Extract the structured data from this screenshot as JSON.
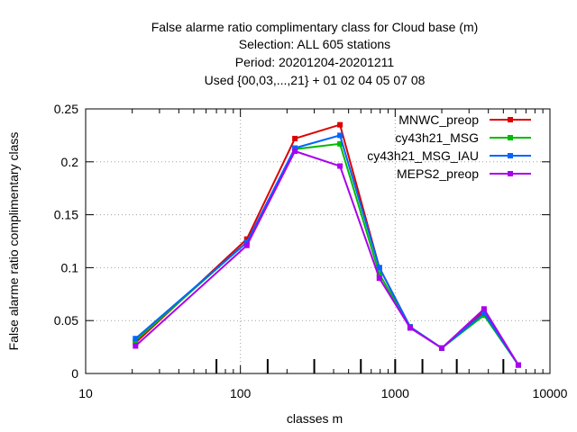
{
  "chart_data": {
    "type": "line",
    "title_lines": [
      "False alarme ratio complimentary class  for Cloud base (m)",
      "Selection: ALL    605 stations",
      "Period: 20201204-20201211",
      "Used {00,03,...,21} + 01 02 04 05 07 08"
    ],
    "xlabel": "classes m",
    "ylabel": "False alarme ratio complimentary class",
    "x_scale": "log",
    "xlim": [
      10,
      10000
    ],
    "ylim": [
      0,
      0.25
    ],
    "x_ticks": [
      10,
      100,
      1000,
      10000
    ],
    "x_tick_labels": [
      "10",
      "100",
      "1000",
      "10000"
    ],
    "y_ticks": [
      0,
      0.05,
      0.1,
      0.15,
      0.2,
      0.25
    ],
    "y_tick_labels": [
      "0",
      "0.05",
      "0.1",
      "0.15",
      "0.2",
      "0.25"
    ],
    "grid": true,
    "legend_position": "top-right",
    "class_boundaries": [
      70,
      150,
      300,
      600,
      1000,
      1500,
      2500,
      5000
    ],
    "x": [
      21,
      110,
      225,
      440,
      790,
      1250,
      2000,
      3750,
      6250
    ],
    "series": [
      {
        "name": "MNWC_preop",
        "color": "#dd0000",
        "values": [
          0.029,
          0.127,
          0.222,
          0.235,
          0.1,
          0.044,
          0.024,
          0.059,
          0.008
        ]
      },
      {
        "name": "cy43h21_MSG",
        "color": "#00bb00",
        "values": [
          0.031,
          0.124,
          0.212,
          0.217,
          0.094,
          0.044,
          0.024,
          0.055,
          0.008
        ]
      },
      {
        "name": "cy43h21_MSG_IAU",
        "color": "#0066ff",
        "values": [
          0.033,
          0.124,
          0.213,
          0.225,
          0.1,
          0.044,
          0.024,
          0.057,
          0.008
        ]
      },
      {
        "name": "MEPS2_preop",
        "color": "#aa00ee",
        "values": [
          0.026,
          0.121,
          0.21,
          0.196,
          0.09,
          0.043,
          0.024,
          0.061,
          0.008
        ]
      }
    ]
  }
}
